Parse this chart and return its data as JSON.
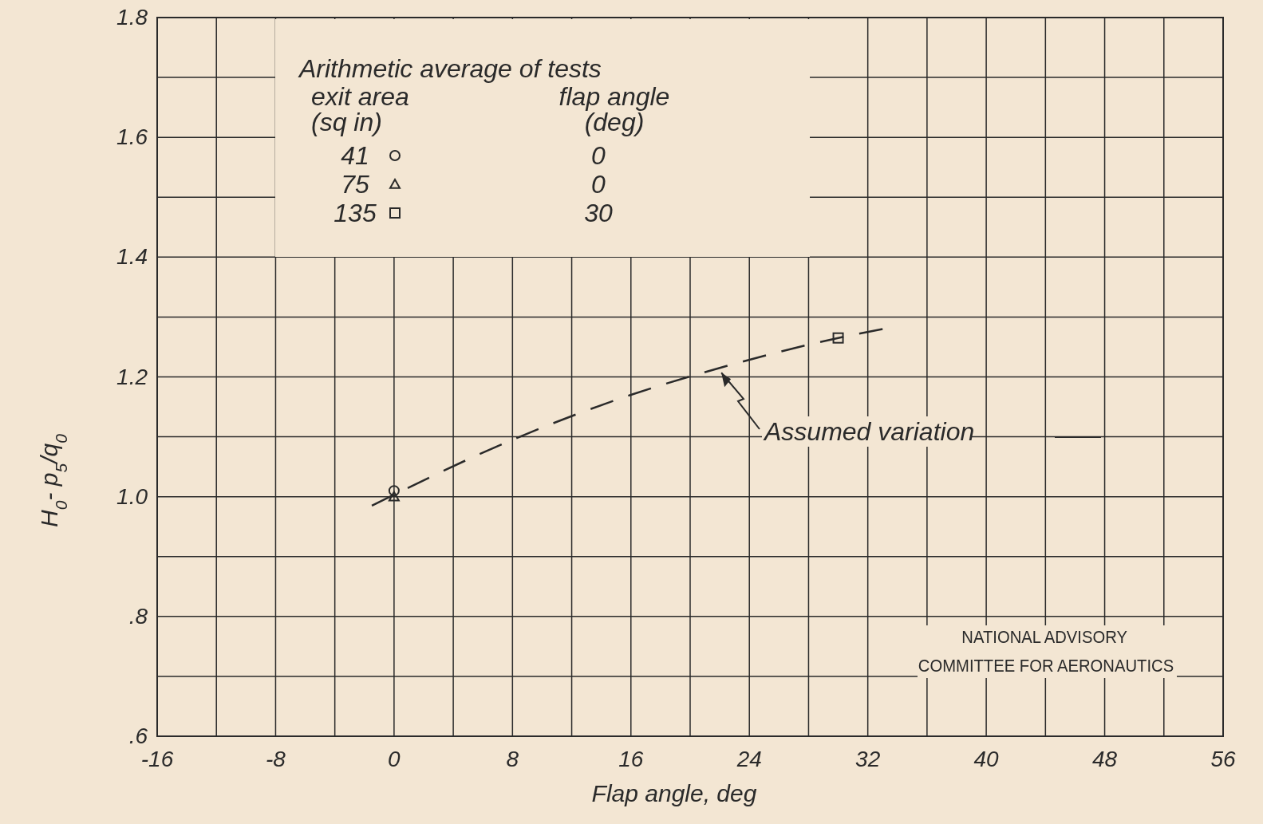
{
  "chart_data": {
    "type": "scatter",
    "xlabel": "Flap angle, deg",
    "ylabel": "H$_{0}$- p$_{5}$/q$_{0}$",
    "legend_title": "Arithmetic average of tests",
    "legend": "top left",
    "grid": true,
    "xlim": [
      -16,
      56
    ],
    "xticks": [
      -16,
      {
        "value": -12,
        "label": null
      },
      -8,
      {
        "value": -4,
        "label": null
      },
      0,
      {
        "value": 4,
        "label": null
      },
      8,
      {
        "value": 12,
        "label": null
      },
      16,
      {
        "value": 20,
        "label": null
      },
      24,
      {
        "value": 28,
        "label": null
      },
      32,
      {
        "value": 36,
        "label": null
      },
      40,
      {
        "value": 44,
        "label": null
      },
      48,
      {
        "value": 52,
        "label": null
      },
      56
    ],
    "ylim": [
      0.6,
      1.8
    ],
    "yticks": [
      {
        "value": 0.6,
        "label": ".6"
      },
      {
        "value": 0.7,
        "label": null
      },
      {
        "value": 0.8,
        "label": ".8"
      },
      {
        "value": 0.9,
        "label": null
      },
      {
        "value": 1.0,
        "label": "1.0"
      },
      {
        "value": 1.1,
        "label": null
      },
      {
        "value": 1.2,
        "label": "1.2"
      },
      {
        "value": 1.3,
        "label": null
      },
      {
        "value": 1.4,
        "label": "1.4"
      },
      {
        "value": 1.5,
        "label": null
      },
      {
        "value": 1.6,
        "label": "1.6"
      },
      {
        "value": 1.7,
        "label": null
      },
      {
        "value": 1.8,
        "label": "1.8"
      }
    ],
    "series": [
      {
        "type": "line",
        "color": "#2a2a2a",
        "line_style": "dashed",
        "marker": "none",
        "x": [
          -1.5,
          8,
          16,
          22,
          30,
          33
        ],
        "values": [
          0.985,
          1.095,
          1.17,
          1.215,
          1.265,
          1.28
        ]
      },
      {
        "name": "41",
        "type": "scatter",
        "marker": "circle",
        "color": "#2a2a2a",
        "x": [
          0
        ],
        "values": [
          1.01
        ]
      },
      {
        "name": "75",
        "type": "scatter",
        "marker": "triangle",
        "color": "#2a2a2a",
        "x": [
          0
        ],
        "values": [
          1.0
        ]
      },
      {
        "name": "135",
        "type": "scatter",
        "marker": "square",
        "color": "#2a2a2a",
        "x": [
          30
        ],
        "values": [
          1.265
        ]
      }
    ],
    "annotations": [
      "exit area",
      "(sq in)",
      "flap angle",
      "(deg)",
      "0",
      "0",
      "30",
      {
        "text": "Assumed variation",
        "x": 22,
        "y": 1.215
      },
      "NATIONAL ADVISORY",
      "COMMITTEE FOR AERONAUTICS"
    ]
  }
}
